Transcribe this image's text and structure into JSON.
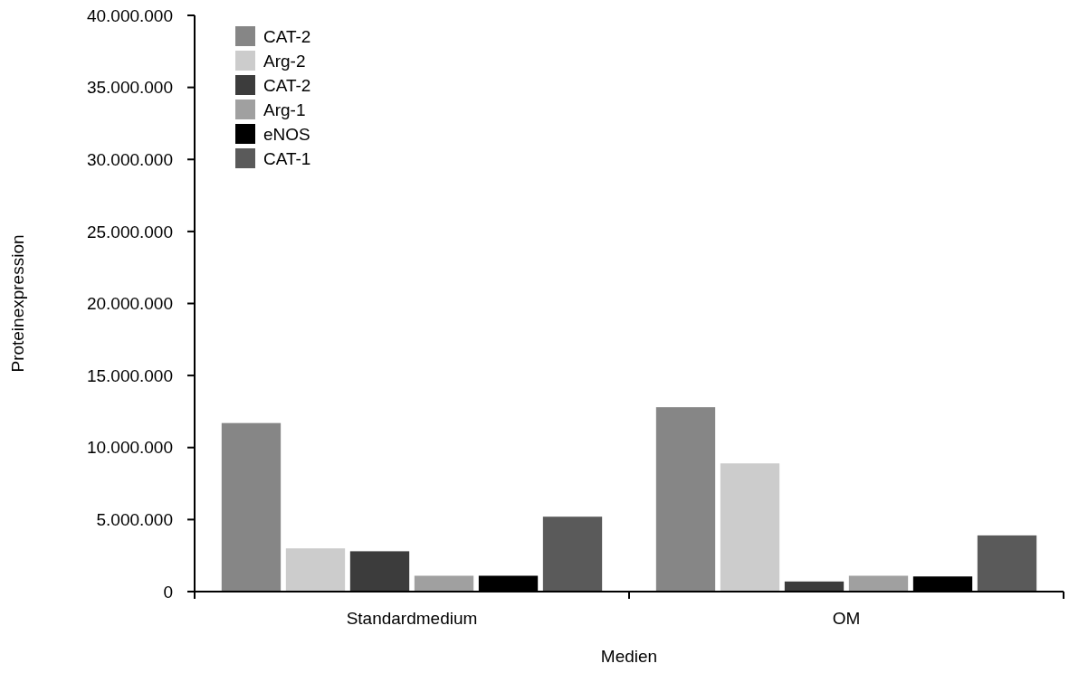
{
  "chart_data": {
    "type": "bar",
    "xlabel": "Medien",
    "ylabel": "Proteinexpression",
    "categories": [
      "Standardmedium",
      "OM"
    ],
    "series": [
      {
        "name": "CAT-2",
        "color": "#868686",
        "values": [
          11700000,
          12800000
        ]
      },
      {
        "name": "Arg-2",
        "color": "#cccccc",
        "values": [
          3000000,
          8900000
        ]
      },
      {
        "name": "CAT-2",
        "color": "#3c3c3c",
        "values": [
          2800000,
          700000
        ]
      },
      {
        "name": "Arg-1",
        "color": "#a0a0a0",
        "values": [
          1100000,
          1100000
        ]
      },
      {
        "name": "eNOS",
        "color": "#000000",
        "values": [
          1100000,
          1050000
        ]
      },
      {
        "name": "CAT-1",
        "color": "#5a5a5a",
        "values": [
          5200000,
          3900000
        ]
      }
    ],
    "ylim": [
      0,
      40000000
    ],
    "yticks": [
      0,
      {
        "value": 5000000,
        "label": "5.000.000"
      },
      {
        "value": 10000000,
        "label": "10.000.000"
      },
      {
        "value": 15000000,
        "label": "15.000.000"
      },
      {
        "value": 20000000,
        "label": "20.000.000"
      },
      {
        "value": 25000000,
        "label": "25.000.000"
      },
      {
        "value": 30000000,
        "label": "30.000.000"
      },
      {
        "value": 35000000,
        "label": "35.000.000"
      },
      {
        "value": 40000000,
        "label": "40.000.000"
      }
    ],
    "grid": false,
    "legend": "top left"
  }
}
